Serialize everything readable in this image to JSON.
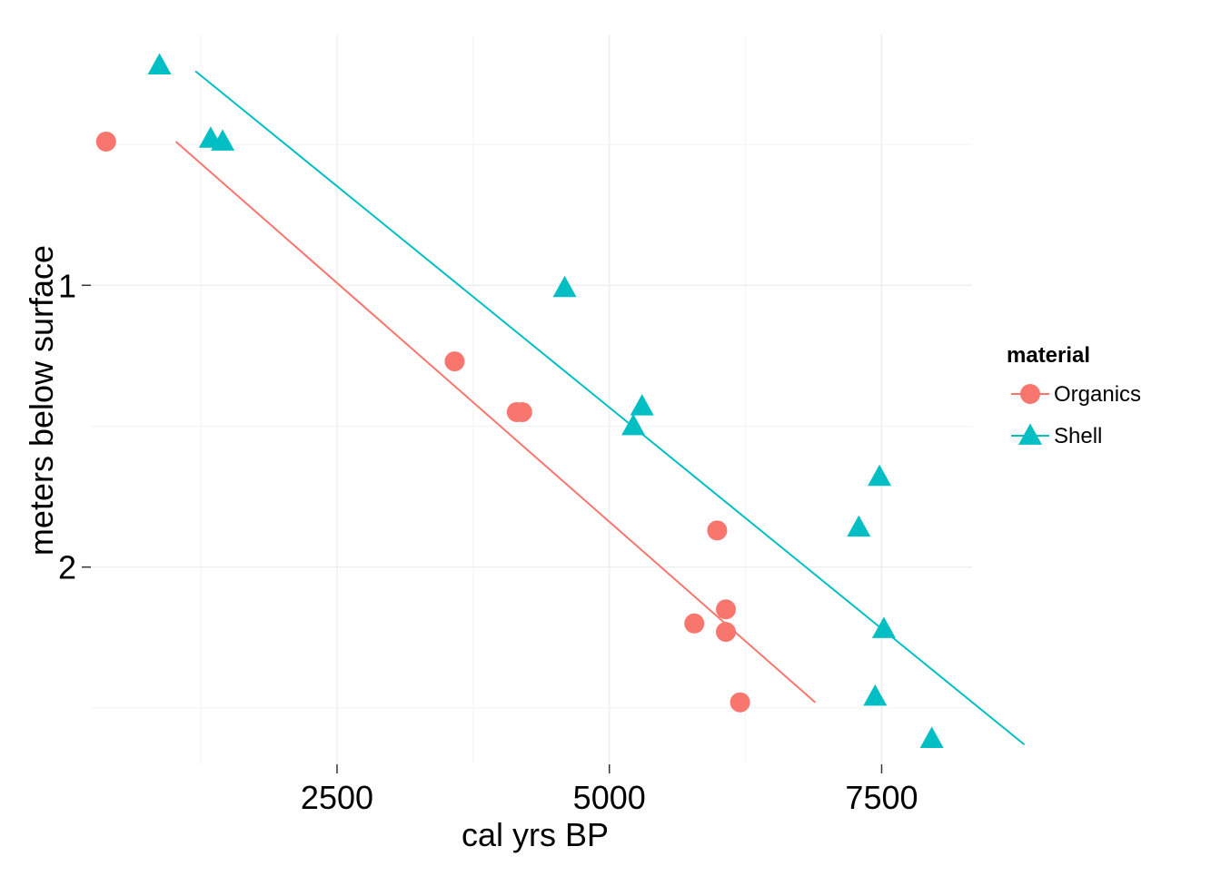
{
  "chart_data": {
    "type": "scatter",
    "xlabel": "cal yrs BP",
    "ylabel": "meters below surface",
    "x_ticks": [
      2500,
      5000,
      7500
    ],
    "y_ticks": [
      1,
      2
    ],
    "xlim": [
      240,
      8330
    ],
    "ylim": [
      0.11,
      2.7
    ],
    "y_reversed": true,
    "grid": true,
    "legend": {
      "title": "material",
      "position": "right"
    },
    "series": [
      {
        "name": "Organics",
        "marker": "circle",
        "color": "#F8766D",
        "points": [
          {
            "x": 380,
            "y": 0.49
          },
          {
            "x": 3580,
            "y": 1.27
          },
          {
            "x": 4150,
            "y": 1.45
          },
          {
            "x": 4200,
            "y": 1.45
          },
          {
            "x": 5990,
            "y": 1.87
          },
          {
            "x": 6070,
            "y": 2.15
          },
          {
            "x": 5780,
            "y": 2.2
          },
          {
            "x": 6070,
            "y": 2.23
          },
          {
            "x": 6200,
            "y": 2.48
          }
        ],
        "trend": {
          "x": [
            1020,
            6890
          ],
          "y": [
            0.49,
            2.48
          ]
        }
      },
      {
        "name": "Shell",
        "marker": "triangle",
        "color": "#00BFC4",
        "points": [
          {
            "x": 870,
            "y": 0.22
          },
          {
            "x": 1340,
            "y": 0.48
          },
          {
            "x": 1450,
            "y": 0.49
          },
          {
            "x": 4590,
            "y": 1.01
          },
          {
            "x": 5300,
            "y": 1.43
          },
          {
            "x": 5220,
            "y": 1.5
          },
          {
            "x": 7480,
            "y": 1.68
          },
          {
            "x": 7290,
            "y": 1.86
          },
          {
            "x": 7520,
            "y": 2.22
          },
          {
            "x": 7440,
            "y": 2.46
          },
          {
            "x": 7960,
            "y": 2.61
          }
        ],
        "trend": {
          "x": [
            1200,
            8810
          ],
          "y": [
            0.24,
            2.63
          ]
        }
      }
    ]
  }
}
